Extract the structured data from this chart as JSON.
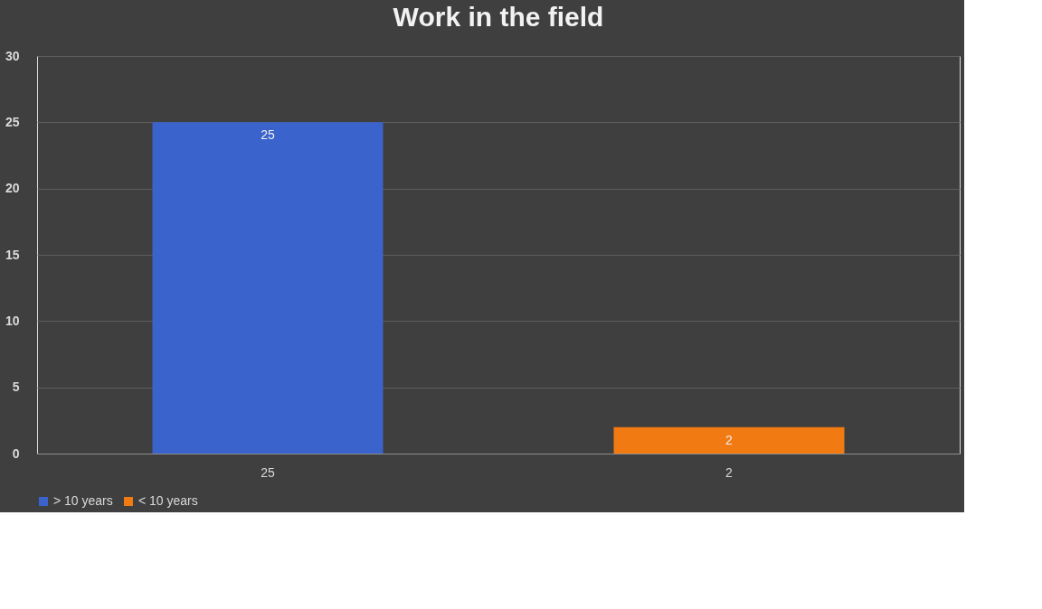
{
  "chart_data": {
    "type": "bar",
    "title": "Work in the field",
    "categories": [
      "25",
      "2"
    ],
    "series": [
      {
        "name": "> 10 years",
        "color": "#3b63cc",
        "values": [
          25,
          null
        ]
      },
      {
        "name": "< 10 years",
        "color": "#f27a12",
        "values": [
          null,
          2
        ]
      }
    ],
    "ylim": [
      0,
      30
    ],
    "yticks": [
      0,
      5,
      10,
      15,
      20,
      25,
      30
    ],
    "grid": "y",
    "legend": "bottom",
    "data_labels": true
  }
}
